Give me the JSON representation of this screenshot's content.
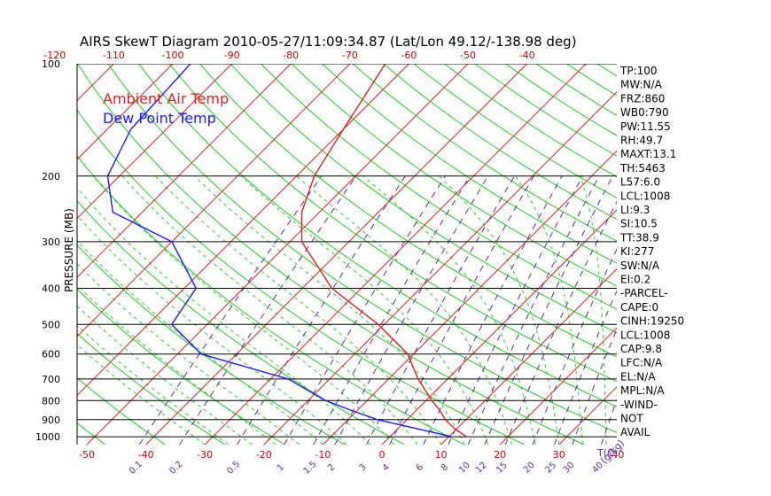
{
  "chart_data": {
    "type": "line",
    "title": "AIRS SkewT Diagram 2010-05-27/11:09:34.87 (Lat/Lon 49.12/-138.98 deg)",
    "ylabel": "PRESSURE (MB)",
    "xlabel_bottom_unit": "T(C)",
    "mixing_ratio_unit": "(g/kg)",
    "y_ticks": [
      "100",
      "200",
      "300",
      "400",
      "500",
      "600",
      "700",
      "800",
      "900",
      "1000"
    ],
    "x_ticks_top": [
      "-120",
      "-110",
      "-100",
      "-90",
      "-80",
      "-70",
      "-60",
      "-50",
      "-40"
    ],
    "x_ticks_bottom": [
      "-50",
      "-40",
      "-30",
      "-20",
      "-10",
      "0",
      "10",
      "20",
      "30",
      "40"
    ],
    "mixing_ratio_labels": [
      "0.1",
      "0.2",
      "0.5",
      "1",
      "1.5",
      "2",
      "3",
      "4",
      "6",
      "8",
      "10",
      "12",
      "15",
      "20",
      "25",
      "30",
      "40"
    ],
    "legend": [
      {
        "label": "Ambient Air Temp",
        "color": "#e02020"
      },
      {
        "label": "Dew Point Temp",
        "color": "#1a1aff"
      }
    ],
    "series": [
      {
        "name": "Ambient Air Temp",
        "pressure": [
          1000,
          950,
          900,
          850,
          800,
          700,
          600,
          500,
          400,
          350,
          300,
          250,
          200,
          150,
          100
        ],
        "temperature": [
          13,
          9.5,
          6.5,
          4,
          1,
          -5,
          -11,
          -21,
          -35,
          -41,
          -48,
          -53,
          -57,
          -60,
          -64
        ]
      },
      {
        "name": "Dew Point Temp",
        "pressure": [
          1000,
          950,
          900,
          850,
          800,
          700,
          600,
          500,
          400,
          300,
          250,
          200,
          150,
          100
        ],
        "temperature": [
          10.5,
          3,
          -5,
          -11,
          -17,
          -27,
          -46,
          -56,
          -58,
          -70,
          -85,
          -92,
          -96,
          -97
        ]
      }
    ],
    "indices": [
      "TP:100",
      "MW:N/A",
      "FRZ:860",
      "WB0:790",
      "PW:11.55",
      "RH:49.7",
      "MAXT:13.1",
      "TH:5463",
      "L57:6.0",
      "LCL:1008",
      "LI:9.3",
      "SI:10.5",
      "TT:38.9",
      "KI:277",
      "SW:N/A",
      "EI:0.2",
      "-PARCEL-",
      "CAPE:0",
      "CINH:19250",
      "LCL:1008",
      "CAP:9.8",
      "LFC:N/A",
      "EL:N/A",
      "MPL:N/A",
      "-WIND-",
      "NOT",
      "AVAIL"
    ],
    "colors": {
      "isotherm": "#dd2020",
      "dry_adiabat": "#22cc22",
      "moist_adiabat": "#33cc33",
      "mixing_ratio": "#5a2ea0",
      "temperature": "#e02020",
      "dewpoint": "#1a1aff"
    }
  }
}
